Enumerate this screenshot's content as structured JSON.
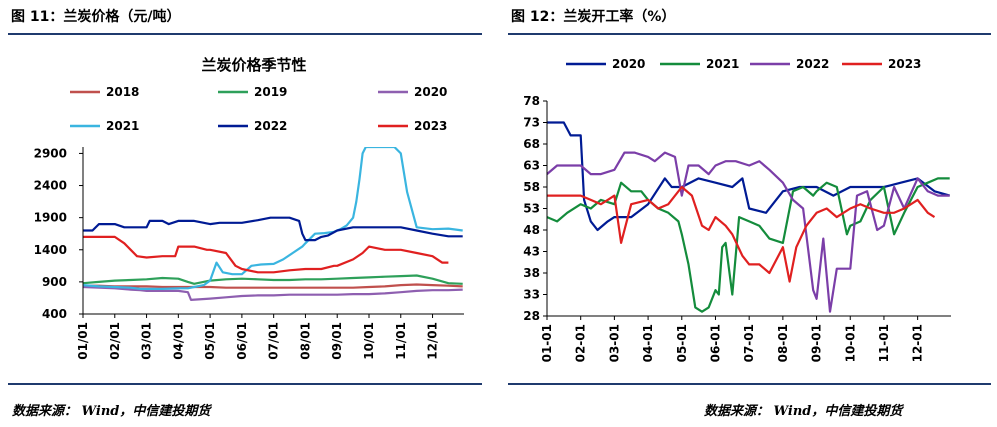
{
  "header": {
    "left_title": "图 11：兰炭价格（元/吨）",
    "right_title": "图 12：兰炭开工率（%）",
    "accent_color": "#1f3a6e"
  },
  "footer": {
    "source_left": "数据来源： Wind，中信建投期货",
    "source_right": "数据来源： Wind，中信建投期货"
  },
  "chart_data": [
    {
      "type": "line",
      "title": "兰炭价格季节性",
      "xlabel": "",
      "ylabel": "",
      "x_ticks": [
        "01/01",
        "02/01",
        "03/01",
        "04/01",
        "05/01",
        "06/01",
        "07/01",
        "08/01",
        "09/01",
        "10/01",
        "11/01",
        "12/01"
      ],
      "y_ticks": [
        400,
        900,
        1400,
        1900,
        2400,
        2900
      ],
      "ylim": [
        400,
        3000
      ],
      "xlim": [
        1,
        12.99
      ],
      "grid": false,
      "legend_position": "top",
      "series": [
        {
          "name": "2018",
          "color": "#c0504d",
          "x": [
            1,
            1.5,
            2,
            2.5,
            3,
            3.5,
            4,
            4.5,
            5,
            5.5,
            6,
            6.5,
            7,
            7.5,
            8,
            8.5,
            9,
            9.5,
            10,
            10.5,
            11,
            11.5,
            12,
            12.5,
            12.95
          ],
          "values": [
            840,
            840,
            830,
            830,
            830,
            820,
            820,
            820,
            820,
            810,
            810,
            810,
            810,
            810,
            810,
            810,
            810,
            810,
            820,
            830,
            850,
            860,
            850,
            840,
            830
          ]
        },
        {
          "name": "2019",
          "color": "#2ea05a",
          "x": [
            1,
            1.5,
            2,
            2.5,
            3,
            3.5,
            4,
            4.3,
            4.5,
            5,
            5.5,
            6,
            6.5,
            7,
            7.5,
            8,
            8.5,
            9,
            9.5,
            10,
            10.5,
            11,
            11.5,
            12,
            12.5,
            12.95
          ],
          "values": [
            880,
            900,
            920,
            930,
            940,
            960,
            950,
            900,
            870,
            920,
            940,
            950,
            940,
            930,
            930,
            940,
            940,
            950,
            960,
            970,
            980,
            990,
            1000,
            950,
            880,
            870
          ]
        },
        {
          "name": "2020",
          "color": "#8e5fb0",
          "x": [
            1,
            1.5,
            2,
            2.5,
            2.8,
            3,
            3.5,
            4,
            4.3,
            4.4,
            5,
            5.5,
            6,
            6.5,
            7,
            7.5,
            8,
            8.5,
            9,
            9.5,
            10,
            10.5,
            11,
            11.5,
            12,
            12.5,
            12.95
          ],
          "values": [
            820,
            810,
            800,
            780,
            770,
            760,
            760,
            760,
            740,
            620,
            640,
            660,
            680,
            690,
            690,
            700,
            700,
            700,
            700,
            710,
            710,
            720,
            740,
            760,
            770,
            770,
            780
          ]
        },
        {
          "name": "2021",
          "color": "#3ab5e0",
          "x": [
            1,
            1.5,
            2,
            2.5,
            2.8,
            3,
            3.5,
            4,
            4.3,
            4.5,
            4.8,
            5,
            5.2,
            5.4,
            5.7,
            6,
            6.3,
            6.6,
            7,
            7.3,
            7.6,
            7.9,
            8,
            8.3,
            8.6,
            8.9,
            9.1,
            9.3,
            9.5,
            9.6,
            9.7,
            9.8,
            9.9,
            10,
            10.5,
            10.8,
            11,
            11.2,
            11.5,
            12,
            12.5,
            12.95
          ],
          "values": [
            850,
            830,
            820,
            810,
            790,
            790,
            790,
            800,
            800,
            820,
            850,
            920,
            1200,
            1050,
            1020,
            1020,
            1150,
            1170,
            1180,
            1250,
            1350,
            1450,
            1500,
            1650,
            1660,
            1680,
            1720,
            1780,
            1900,
            2150,
            2500,
            2900,
            3000,
            3000,
            3000,
            3000,
            2900,
            2300,
            1750,
            1720,
            1730,
            1700
          ]
        },
        {
          "name": "2022",
          "color": "#001b94",
          "x": [
            1,
            1.3,
            1.5,
            2,
            2.3,
            2.5,
            3,
            3.1,
            3.5,
            3.7,
            4,
            4.5,
            5,
            5.3,
            5.5,
            6,
            6.5,
            6.9,
            7,
            7.5,
            7.8,
            7.9,
            8,
            8.3,
            8.5,
            8.7,
            9,
            9.5,
            10,
            10.5,
            11,
            11.5,
            12,
            12.5,
            12.95
          ],
          "values": [
            1700,
            1700,
            1800,
            1800,
            1750,
            1750,
            1750,
            1850,
            1850,
            1800,
            1850,
            1850,
            1800,
            1820,
            1820,
            1820,
            1860,
            1900,
            1900,
            1900,
            1850,
            1650,
            1550,
            1550,
            1600,
            1620,
            1700,
            1750,
            1750,
            1750,
            1750,
            1700,
            1650,
            1610,
            1610
          ]
        },
        {
          "name": "2023",
          "color": "#e02020",
          "x": [
            1,
            1.5,
            2,
            2.3,
            2.5,
            2.7,
            3,
            3.5,
            3.9,
            4,
            4.5,
            4.9,
            5,
            5.5,
            5.8,
            6,
            6.5,
            7,
            7.5,
            8,
            8.5,
            8.9,
            9,
            9.5,
            9.8,
            10,
            10.5,
            11,
            11.5,
            12,
            12.3,
            12.5
          ],
          "values": [
            1600,
            1600,
            1600,
            1500,
            1400,
            1300,
            1280,
            1300,
            1300,
            1450,
            1450,
            1400,
            1400,
            1350,
            1150,
            1100,
            1050,
            1050,
            1080,
            1100,
            1100,
            1150,
            1150,
            1250,
            1350,
            1450,
            1400,
            1400,
            1350,
            1300,
            1200,
            1200
          ]
        }
      ]
    },
    {
      "type": "line",
      "title": "",
      "xlabel": "",
      "ylabel": "",
      "x_ticks": [
        "01-01",
        "02-01",
        "03-01",
        "04-01",
        "05-01",
        "06-01",
        "07-01",
        "08-01",
        "09-01",
        "10-01",
        "11-01",
        "12-01"
      ],
      "y_ticks": [
        28,
        33,
        38,
        43,
        48,
        53,
        58,
        63,
        68,
        73,
        78
      ],
      "ylim": [
        28,
        78
      ],
      "xlim": [
        1,
        12.99
      ],
      "grid": false,
      "legend_position": "top",
      "series": [
        {
          "name": "2020",
          "color": "#001b94",
          "x": [
            1,
            1.5,
            1.7,
            2,
            2.1,
            2.3,
            2.5,
            2.8,
            3,
            3.5,
            4,
            4.5,
            4.7,
            5,
            5.5,
            6,
            6.5,
            6.8,
            7,
            7.5,
            7.8,
            8,
            8.5,
            9,
            9.5,
            10,
            10.5,
            11,
            11.5,
            12,
            12.5,
            12.95
          ],
          "values": [
            73,
            73,
            70,
            70,
            55,
            50,
            48,
            50,
            51,
            51,
            54,
            60,
            58,
            58,
            60,
            59,
            58,
            60,
            53,
            52,
            55,
            57,
            58,
            58,
            56,
            58,
            58,
            58,
            59,
            60,
            57,
            56
          ]
        },
        {
          "name": "2021",
          "color": "#148c3c",
          "x": [
            1,
            1.3,
            1.6,
            2,
            2.3,
            2.6,
            3,
            3.2,
            3.5,
            3.8,
            4,
            4.3,
            4.6,
            4.9,
            5,
            5.2,
            5.4,
            5.6,
            5.8,
            6,
            6.1,
            6.2,
            6.3,
            6.5,
            6.7,
            7,
            7.3,
            7.6,
            8,
            8.3,
            8.6,
            8.9,
            9,
            9.3,
            9.6,
            9.9,
            10,
            10.3,
            10.6,
            11,
            11.3,
            11.6,
            12,
            12.3,
            12.6,
            12.95
          ],
          "values": [
            51,
            50,
            52,
            54,
            53,
            55,
            54,
            59,
            57,
            57,
            55,
            53,
            52,
            50,
            47,
            40,
            30,
            29,
            30,
            34,
            33,
            44,
            45,
            33,
            51,
            50,
            49,
            46,
            45,
            57,
            58,
            56,
            57,
            59,
            58,
            47,
            49,
            50,
            55,
            58,
            47,
            52,
            58,
            59,
            60,
            60
          ]
        },
        {
          "name": "2022",
          "color": "#7b3ea8",
          "x": [
            1,
            1.3,
            1.6,
            2,
            2.3,
            2.6,
            3,
            3.3,
            3.6,
            4,
            4.2,
            4.5,
            4.8,
            5,
            5.2,
            5.5,
            5.8,
            6,
            6.3,
            6.6,
            7,
            7.3,
            7.6,
            8,
            8.3,
            8.6,
            8.9,
            9,
            9.2,
            9.4,
            9.6,
            9.8,
            10,
            10.2,
            10.5,
            10.8,
            11,
            11.3,
            11.6,
            12,
            12.3,
            12.6,
            12.95
          ],
          "values": [
            61,
            63,
            63,
            63,
            61,
            61,
            62,
            66,
            66,
            65,
            64,
            66,
            65,
            56,
            63,
            63,
            61,
            63,
            64,
            64,
            63,
            64,
            62,
            59,
            55,
            53,
            34,
            32,
            46,
            29,
            39,
            39,
            39,
            56,
            57,
            48,
            49,
            58,
            53,
            60,
            57,
            56,
            56
          ]
        },
        {
          "name": "2023",
          "color": "#e02020",
          "x": [
            1,
            1.5,
            2,
            2.3,
            2.6,
            2.8,
            3,
            3.2,
            3.5,
            4,
            4.3,
            4.6,
            5,
            5.3,
            5.6,
            5.8,
            6,
            6.3,
            6.5,
            6.8,
            7,
            7.3,
            7.6,
            8,
            8.2,
            8.4,
            8.7,
            9,
            9.3,
            9.6,
            10,
            10.3,
            10.6,
            11,
            11.3,
            11.6,
            12,
            12.3,
            12.5
          ],
          "values": [
            56,
            56,
            56,
            55,
            54,
            55,
            56,
            45,
            54,
            55,
            53,
            54,
            58,
            56,
            49,
            48,
            51,
            49,
            47,
            42,
            40,
            40,
            38,
            44,
            36,
            44,
            49,
            52,
            53,
            51,
            53,
            54,
            53,
            52,
            52,
            53,
            55,
            52,
            51
          ]
        }
      ]
    }
  ]
}
